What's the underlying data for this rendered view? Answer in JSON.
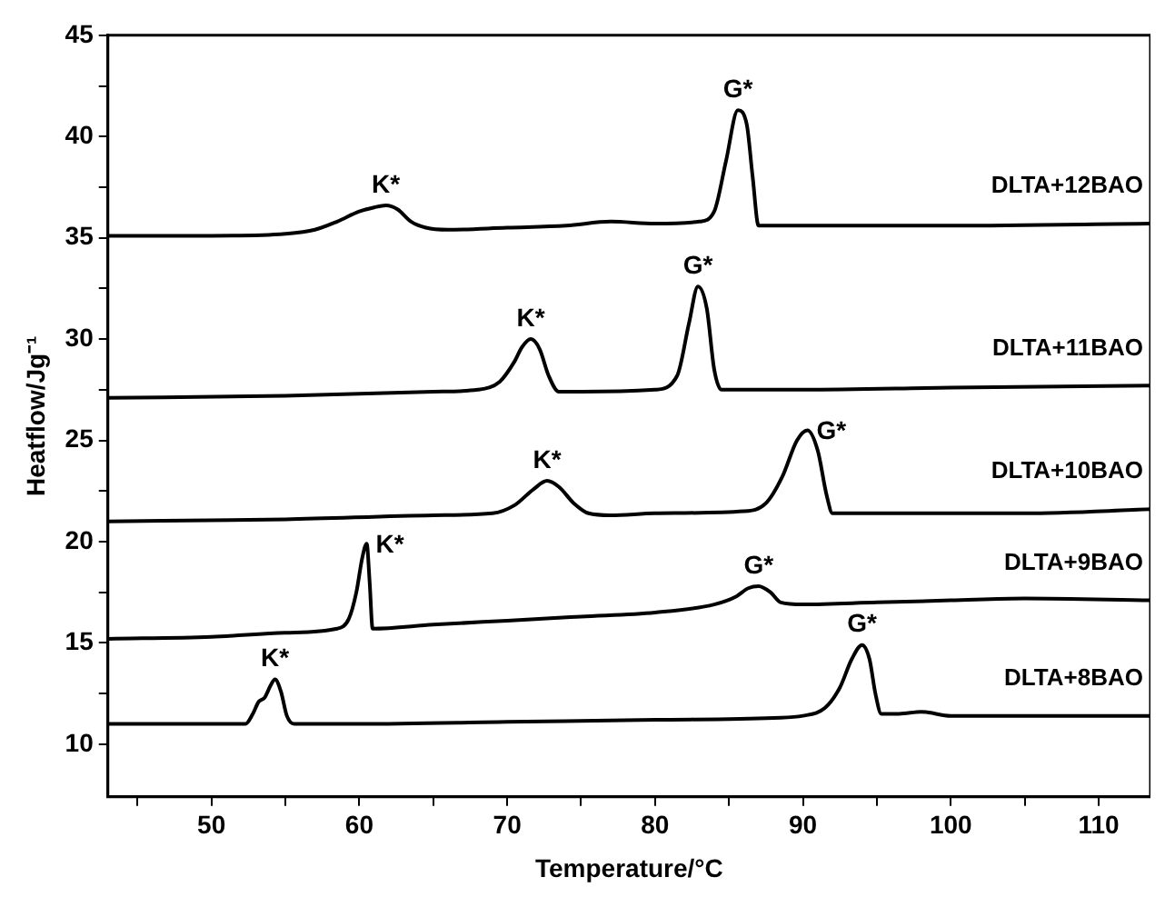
{
  "chart_data": {
    "type": "line",
    "xlabel": "Temperature/°C",
    "ylabel": "Heatflow/Jg⁻¹",
    "xlim": [
      43,
      113.5
    ],
    "ylim": [
      7.4,
      45
    ],
    "xticks": [
      {
        "value": 45,
        "label": null
      },
      50,
      {
        "value": 55,
        "label": null
      },
      60,
      {
        "value": 65,
        "label": null
      },
      70,
      {
        "value": 75,
        "label": null
      },
      80,
      {
        "value": 85,
        "label": null
      },
      90,
      {
        "value": 95,
        "label": null
      },
      100,
      {
        "value": 105,
        "label": null
      },
      110
    ],
    "yticks": [
      10,
      {
        "value": 12.5,
        "label": null
      },
      15,
      {
        "value": 17.5,
        "label": null
      },
      20,
      {
        "value": 22.5,
        "label": null
      },
      25,
      {
        "value": 27.5,
        "label": null
      },
      30,
      {
        "value": 32.5,
        "label": null
      },
      35,
      {
        "value": 37.5,
        "label": null
      },
      40,
      {
        "value": 42.5,
        "label": null
      },
      45
    ],
    "grid": false,
    "legend": false,
    "marker": "none",
    "line_style": "solid",
    "series": [
      {
        "name": "DLTA+12BAO",
        "color": "#000000",
        "x": [
          43,
          50,
          55,
          57,
          58.5,
          60,
          61,
          61.8,
          62.6,
          63.5,
          64.5,
          66,
          70,
          74,
          77,
          80,
          83,
          84,
          84.8,
          85.6,
          86.2,
          86.6,
          87,
          90,
          100,
          113.5
        ],
        "values": [
          35.1,
          35.1,
          35.2,
          35.4,
          35.8,
          36.3,
          36.5,
          36.6,
          36.4,
          35.8,
          35.5,
          35.4,
          35.5,
          35.6,
          35.8,
          35.7,
          35.8,
          36.3,
          38.8,
          41.3,
          40.6,
          38,
          35.6,
          35.6,
          35.6,
          35.7
        ]
      },
      {
        "name": "DLTA+11BAO",
        "color": "#000000",
        "x": [
          43,
          55,
          65,
          68,
          69.5,
          70.5,
          71,
          71.6,
          72.2,
          72.8,
          73.5,
          75,
          80,
          81.5,
          82.3,
          82.9,
          83.5,
          84,
          84.5,
          90,
          100,
          113.5
        ],
        "values": [
          27.1,
          27.2,
          27.4,
          27.5,
          27.9,
          28.9,
          29.6,
          30,
          29.5,
          28.2,
          27.4,
          27.4,
          27.5,
          28.2,
          30.8,
          32.6,
          31.5,
          28.5,
          27.5,
          27.5,
          27.6,
          27.7
        ]
      },
      {
        "name": "DLTA+10BAO",
        "color": "#000000",
        "x": [
          43,
          55,
          65,
          69,
          70.5,
          71.8,
          72.7,
          73.5,
          74.5,
          75.5,
          77,
          80,
          86,
          87.5,
          88.6,
          89.6,
          90.3,
          91,
          91.6,
          92,
          95,
          105,
          113.5
        ],
        "values": [
          21,
          21.1,
          21.3,
          21.4,
          21.8,
          22.6,
          23,
          22.7,
          21.9,
          21.4,
          21.3,
          21.4,
          21.5,
          21.9,
          23.2,
          25,
          25.5,
          24.5,
          22.3,
          21.4,
          21.4,
          21.4,
          21.6
        ]
      },
      {
        "name": "DLTA+9BAO",
        "color": "#000000",
        "x": [
          43,
          50,
          55,
          58.5,
          59.3,
          59.8,
          60.2,
          60.5,
          60.7,
          60.9,
          65,
          70,
          75,
          80,
          84,
          85.5,
          86.3,
          87,
          87.8,
          88.5,
          90,
          95,
          100,
          105,
          113.5
        ],
        "values": [
          15.2,
          15.3,
          15.5,
          15.7,
          16.2,
          17.5,
          19.2,
          19.9,
          18,
          15.7,
          15.9,
          16.1,
          16.3,
          16.5,
          16.9,
          17.3,
          17.7,
          17.8,
          17.5,
          17,
          16.9,
          17,
          17.1,
          17.2,
          17.1
        ]
      },
      {
        "name": "DLTA+8BAO",
        "color": "#000000",
        "x": [
          43,
          50,
          52.3,
          52.8,
          53.2,
          53.6,
          54,
          54.3,
          54.7,
          55.1,
          55.6,
          60,
          70,
          80,
          88,
          90,
          91.5,
          92.5,
          93.3,
          94,
          94.5,
          94.9,
          95.3,
          96.5,
          98,
          100,
          105,
          113.5
        ],
        "values": [
          11,
          11,
          11,
          11.5,
          12.1,
          12.3,
          12.9,
          13.2,
          12.6,
          11.4,
          11,
          11,
          11.1,
          11.2,
          11.3,
          11.4,
          11.8,
          12.8,
          14.2,
          14.9,
          14.2,
          12.5,
          11.5,
          11.5,
          11.6,
          11.4,
          11.4,
          11.4
        ]
      }
    ],
    "annotations": [
      {
        "text": "K*",
        "x": 61.8,
        "y": 36.6
      },
      {
        "text": "G*",
        "x": 85.6,
        "y": 41.3
      },
      {
        "text": "K*",
        "x": 71.6,
        "y": 30
      },
      {
        "text": "G*",
        "x": 82.9,
        "y": 32.6
      },
      {
        "text": "K*",
        "x": 72.7,
        "y": 23
      },
      {
        "text": "G*",
        "x": 90.3,
        "y": 25.5
      },
      {
        "text": "K*",
        "x": 60.5,
        "y": 19.9
      },
      {
        "text": "G*",
        "x": 87,
        "y": 17.8
      },
      {
        "text": "K*",
        "x": 54.3,
        "y": 13.2
      },
      {
        "text": "G*",
        "x": 94,
        "y": 14.9
      }
    ]
  }
}
